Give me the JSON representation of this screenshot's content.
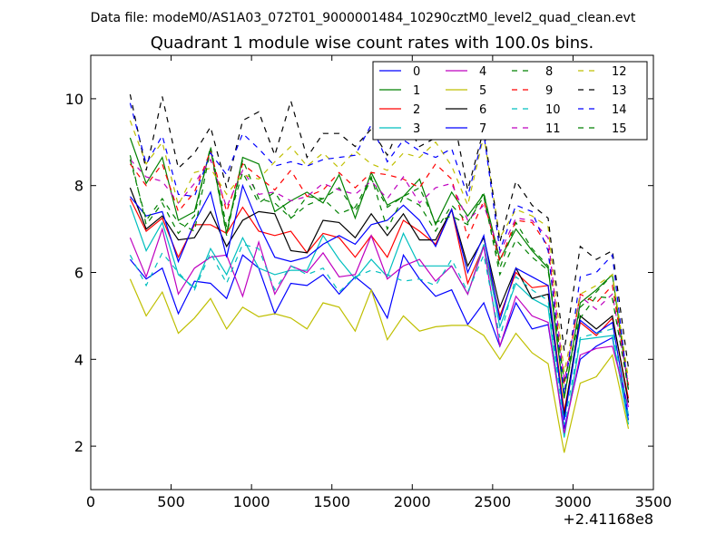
{
  "chart_data": {
    "type": "line",
    "suptitle": "Data file: modeM0/AS1A03_072T01_9000001484_10290cztM0_level2_quad_clean.evt",
    "title": "Quadrant 1 module wise count rates with 100.0s bins.",
    "xlabel": "",
    "ylabel": "",
    "x_offset_label": "+2.41168e8",
    "xlim": [
      0,
      3500
    ],
    "ylim": [
      1,
      11
    ],
    "xticks": [
      0,
      500,
      1000,
      1500,
      2000,
      2500,
      3000,
      3500
    ],
    "xtick_labels": [
      "0",
      "500",
      "1000",
      "1500",
      "2000",
      "2500",
      "3000",
      "3500"
    ],
    "yticks": [
      2,
      4,
      6,
      8,
      10
    ],
    "ytick_labels": [
      "2",
      "4",
      "6",
      "8",
      "10"
    ],
    "legend_position": "top-right",
    "legend_columns": 4,
    "x": [
      245,
      345,
      445,
      545,
      645,
      745,
      845,
      945,
      1045,
      1145,
      1245,
      1345,
      1445,
      1545,
      1645,
      1745,
      1845,
      1945,
      2045,
      2145,
      2245,
      2345,
      2445,
      2545,
      2645,
      2745,
      2845,
      2945,
      3045,
      3145,
      3245,
      3345
    ],
    "series": [
      {
        "name": "0",
        "color": "#0000ff",
        "dash": "solid",
        "values": [
          6.3,
          5.85,
          6.1,
          5.05,
          5.8,
          5.75,
          5.4,
          6.4,
          6.1,
          5.05,
          5.75,
          5.7,
          5.95,
          5.5,
          5.9,
          5.6,
          4.95,
          6.4,
          5.85,
          5.45,
          5.6,
          4.8,
          5.3,
          4.3,
          5.3,
          4.7,
          4.8,
          2.4,
          4.0,
          4.3,
          4.5,
          2.6
        ]
      },
      {
        "name": "1",
        "color": "#008000",
        "dash": "solid",
        "values": [
          9.1,
          8.05,
          8.65,
          7.2,
          7.4,
          8.85,
          6.9,
          8.65,
          8.5,
          7.4,
          7.65,
          7.85,
          7.6,
          8.25,
          7.25,
          8.3,
          7.55,
          7.75,
          8.15,
          7.1,
          7.85,
          7.3,
          7.8,
          6.3,
          7.0,
          6.5,
          6.1,
          3.1,
          5.3,
          5.6,
          5.95,
          3.3
        ]
      },
      {
        "name": "2",
        "color": "#ff0000",
        "dash": "solid",
        "values": [
          7.7,
          6.95,
          7.25,
          6.35,
          7.1,
          7.1,
          6.9,
          7.5,
          6.95,
          6.85,
          6.95,
          6.45,
          6.9,
          6.8,
          6.35,
          6.85,
          6.35,
          7.2,
          6.95,
          6.65,
          7.45,
          5.75,
          6.6,
          5.0,
          6.0,
          5.65,
          5.7,
          2.8,
          4.85,
          4.55,
          4.95,
          3.1
        ]
      },
      {
        "name": "3",
        "color": "#00bfbf",
        "dash": "solid",
        "values": [
          7.55,
          6.5,
          7.15,
          5.95,
          5.65,
          6.55,
          5.95,
          6.8,
          6.1,
          5.95,
          6.05,
          6.05,
          6.85,
          6.3,
          5.85,
          6.3,
          5.9,
          6.9,
          6.15,
          6.15,
          6.15,
          5.5,
          6.65,
          4.75,
          5.75,
          5.4,
          5.2,
          2.2,
          4.45,
          4.5,
          4.55,
          2.5
        ]
      },
      {
        "name": "4",
        "color": "#bf00bf",
        "dash": "solid",
        "values": [
          6.8,
          5.9,
          7.0,
          5.5,
          6.1,
          6.35,
          6.4,
          5.45,
          6.7,
          5.5,
          6.15,
          6.0,
          6.45,
          5.9,
          5.95,
          6.85,
          5.85,
          6.15,
          6.3,
          5.8,
          6.15,
          5.5,
          6.6,
          4.3,
          5.45,
          5.0,
          4.85,
          2.3,
          4.1,
          4.25,
          4.3,
          2.9
        ]
      },
      {
        "name": "5",
        "color": "#bfbf00",
        "dash": "solid",
        "values": [
          5.85,
          5.0,
          5.55,
          4.6,
          4.95,
          5.4,
          4.7,
          5.2,
          4.98,
          5.05,
          4.95,
          4.7,
          5.3,
          5.2,
          4.65,
          5.6,
          4.45,
          5.0,
          4.65,
          4.75,
          4.78,
          4.78,
          4.55,
          4.0,
          4.6,
          4.15,
          3.9,
          1.85,
          3.45,
          3.6,
          4.1,
          2.4
        ]
      },
      {
        "name": "6",
        "color": "#000000",
        "dash": "solid",
        "values": [
          7.95,
          7.0,
          7.3,
          6.75,
          6.8,
          7.4,
          6.6,
          7.2,
          7.4,
          7.35,
          6.5,
          6.45,
          7.2,
          7.15,
          6.8,
          7.35,
          6.85,
          7.35,
          6.75,
          6.75,
          7.45,
          6.15,
          6.8,
          5.2,
          6.1,
          5.4,
          5.5,
          2.7,
          5.0,
          4.7,
          5.0,
          3.0
        ]
      },
      {
        "name": "7",
        "color": "#0000ff",
        "dash": "solid",
        "values": [
          7.75,
          7.3,
          7.4,
          6.25,
          7.15,
          7.85,
          6.35,
          8.0,
          7.1,
          6.35,
          6.25,
          6.35,
          6.65,
          6.85,
          6.65,
          7.1,
          7.2,
          7.55,
          7.2,
          6.6,
          7.45,
          6.0,
          6.85,
          4.9,
          6.1,
          5.9,
          5.7,
          2.6,
          4.9,
          4.6,
          4.85,
          2.7
        ]
      },
      {
        "name": "8",
        "color": "#008000",
        "dash": "dashed",
        "values": [
          8.7,
          7.1,
          7.6,
          6.9,
          7.3,
          8.9,
          7.05,
          8.3,
          7.6,
          7.85,
          7.25,
          7.75,
          7.7,
          7.95,
          7.4,
          8.15,
          7.5,
          7.75,
          7.95,
          7.15,
          7.3,
          7.1,
          7.85,
          6.1,
          7.15,
          6.55,
          6.15,
          3.1,
          5.2,
          5.55,
          5.95,
          3.35
        ]
      },
      {
        "name": "9",
        "color": "#ff0000",
        "dash": "dashed",
        "values": [
          8.5,
          8.0,
          8.5,
          7.4,
          7.85,
          8.8,
          7.4,
          8.5,
          8.2,
          7.9,
          8.35,
          7.75,
          7.9,
          8.3,
          7.95,
          8.3,
          8.25,
          8.15,
          7.95,
          8.5,
          8.15,
          6.8,
          7.65,
          6.25,
          7.2,
          7.15,
          6.6,
          3.4,
          5.5,
          5.3,
          5.7,
          3.4
        ]
      },
      {
        "name": "10",
        "color": "#00bfbf",
        "dash": "dashed",
        "values": [
          6.4,
          5.7,
          6.45,
          6.0,
          5.6,
          6.45,
          5.75,
          6.65,
          6.55,
          5.6,
          6.15,
          5.95,
          6.1,
          5.55,
          5.9,
          6.05,
          5.95,
          5.8,
          5.85,
          5.7,
          6.3,
          5.55,
          6.4,
          4.5,
          5.9,
          5.6,
          5.35,
          2.5,
          4.5,
          4.6,
          4.7,
          2.7
        ]
      },
      {
        "name": "11",
        "color": "#bf00bf",
        "dash": "dashed",
        "values": [
          8.6,
          8.2,
          8.1,
          7.6,
          8.05,
          8.6,
          7.5,
          8.35,
          7.8,
          7.85,
          7.65,
          7.75,
          8.05,
          7.9,
          7.8,
          8.1,
          7.7,
          8.2,
          7.6,
          7.95,
          8.05,
          7.2,
          7.55,
          6.45,
          7.25,
          7.2,
          6.8,
          3.5,
          5.45,
          5.15,
          5.5,
          3.4
        ]
      },
      {
        "name": "12",
        "color": "#bfbf00",
        "dash": "dashed",
        "values": [
          9.5,
          8.5,
          9.0,
          7.55,
          8.3,
          8.4,
          7.8,
          8.25,
          8.15,
          8.55,
          8.9,
          8.45,
          8.75,
          8.4,
          8.8,
          8.5,
          8.35,
          8.75,
          8.65,
          9.0,
          8.45,
          7.55,
          9.15,
          6.8,
          7.45,
          7.3,
          7.05,
          3.7,
          5.5,
          5.7,
          5.95,
          3.55
        ]
      },
      {
        "name": "13",
        "color": "#000000",
        "dash": "dashed",
        "values": [
          10.1,
          8.35,
          10.05,
          8.4,
          8.75,
          9.35,
          7.95,
          9.5,
          9.7,
          8.7,
          9.95,
          8.65,
          9.2,
          9.2,
          8.9,
          9.3,
          8.7,
          9.55,
          8.9,
          9.1,
          9.8,
          7.9,
          9.3,
          6.7,
          8.1,
          7.55,
          7.25,
          4.2,
          6.6,
          6.3,
          6.5,
          3.8
        ]
      },
      {
        "name": "14",
        "color": "#0000ff",
        "dash": "dashed",
        "values": [
          9.9,
          8.5,
          9.15,
          7.8,
          7.75,
          8.75,
          8.25,
          9.2,
          8.85,
          8.45,
          8.55,
          8.45,
          8.6,
          8.65,
          8.7,
          9.4,
          8.55,
          9.05,
          8.8,
          8.65,
          8.85,
          7.75,
          9.2,
          6.5,
          7.55,
          7.4,
          6.5,
          3.2,
          5.9,
          6.0,
          6.4,
          3.25
        ]
      },
      {
        "name": "15",
        "color": "#008000",
        "dash": "dashed",
        "values": [
          8.6,
          7.2,
          7.7,
          7.15,
          6.95,
          8.85,
          6.85,
          8.6,
          7.7,
          7.6,
          7.25,
          7.55,
          7.7,
          7.35,
          7.5,
          8.2,
          7.0,
          7.75,
          7.55,
          6.95,
          7.55,
          7.15,
          7.75,
          5.95,
          6.75,
          6.35,
          6.05,
          3.5,
          4.95,
          5.45,
          5.4,
          3.3
        ]
      }
    ]
  }
}
